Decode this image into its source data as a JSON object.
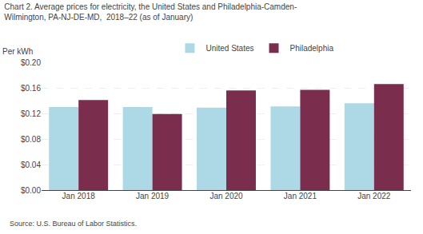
{
  "chart_data": {
    "type": "bar",
    "title": "Chart 2. Average prices for electricity, the United States and Philadelphia-Camden-\nWilmington, PA-NJ-DE-MD,  2018–22 (as of January)",
    "ylabel": "Per kWh",
    "annotations": [
      "Source: U.S. Bureau of Labor Statistics."
    ],
    "categories": [
      "Jan 2018",
      "Jan 2019",
      "Jan 2020",
      "Jan 2021",
      "Jan 2022"
    ],
    "series": [
      {
        "name": "United States",
        "color": "#add8e6",
        "values": [
          0.13,
          0.13,
          0.129,
          0.131,
          0.136
        ]
      },
      {
        "name": "Philadelphia",
        "color": "#7b2d4e",
        "values": [
          0.141,
          0.119,
          0.156,
          0.157,
          0.166
        ]
      }
    ],
    "ylim": [
      0.0,
      0.2
    ],
    "yticks": [
      {
        "value": 0.0,
        "label": "$0.00"
      },
      {
        "value": 0.04,
        "label": "$0.04"
      },
      {
        "value": 0.08,
        "label": "$0.08"
      },
      {
        "value": 0.12,
        "label": "$0.12"
      },
      {
        "value": 0.16,
        "label": "$0.16"
      },
      {
        "value": 0.2,
        "label": "$0.20"
      }
    ],
    "grid": true,
    "legend": "top"
  }
}
